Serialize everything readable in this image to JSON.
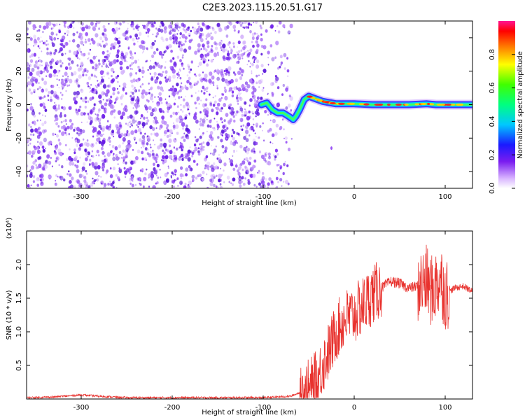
{
  "title": "C2E3.2023.115.20.51.G17",
  "colors": {
    "signal_line": "#e8322e",
    "scatter_purple": "#7a2cf0",
    "background": "#ffffff"
  },
  "chart_data": [
    {
      "type": "heatmap",
      "xlabel": "Height of straight line (km)",
      "ylabel": "Frequency (Hz)",
      "xlim": [
        -360,
        130
      ],
      "ylim": [
        -50,
        50
      ],
      "x_ticks": [
        -300,
        -200,
        -100,
        0,
        100
      ],
      "y_ticks": [
        -40,
        -20,
        0,
        20,
        40
      ],
      "noise_region_x": [
        -360,
        -80
      ],
      "ridge": {
        "x": [
          -102,
          -96,
          -90,
          -84,
          -78,
          -72,
          -67,
          -64,
          -60,
          -55,
          -50,
          -45,
          -40,
          -35,
          -30,
          -25,
          -20,
          -10,
          0,
          20,
          40,
          60,
          80,
          90,
          100,
          115,
          130
        ],
        "y": [
          0,
          1,
          -3,
          -5,
          -5,
          -7,
          -9,
          -7,
          -3,
          3,
          5,
          4,
          3,
          2,
          1.5,
          1,
          0.5,
          0.5,
          0.5,
          0,
          0,
          0,
          0.5,
          0,
          0,
          0,
          0
        ]
      },
      "colorbar": {
        "label": "Normalized spectral amplitude",
        "range": [
          0.0,
          1.0
        ],
        "ticks": [
          0.0,
          0.2,
          0.4,
          0.6,
          0.8
        ]
      },
      "grid": false
    },
    {
      "type": "line",
      "xlabel": "Height of straight line (km)",
      "ylabel": "SNR (10 * v/v)",
      "scale_note": "(x10⁴)",
      "xlim": [
        -360,
        130
      ],
      "ylim": [
        0,
        2.5
      ],
      "x_ticks": [
        -300,
        -200,
        -100,
        0,
        100
      ],
      "y_ticks": [
        0.5,
        1.0,
        1.5,
        2.0
      ],
      "series": [
        {
          "x": [
            -360,
            -330,
            -300,
            -280,
            -250,
            -200,
            -150,
            -100,
            -70,
            -50,
            -40,
            -35,
            -30,
            -25,
            -20,
            -10,
            0,
            10,
            20,
            30,
            40,
            50,
            60,
            70,
            80,
            85,
            90,
            95,
            100,
            110,
            120,
            130
          ],
          "y": [
            0.02,
            0.03,
            0.06,
            0.04,
            0.02,
            0.02,
            0.02,
            0.02,
            0.04,
            0.15,
            0.3,
            0.5,
            0.65,
            0.8,
            1.0,
            1.2,
            1.25,
            1.4,
            1.55,
            1.65,
            1.75,
            1.72,
            1.65,
            1.68,
            1.75,
            1.6,
            1.7,
            1.8,
            1.55,
            1.65,
            1.68,
            1.6
          ]
        }
      ],
      "grid": false
    }
  ]
}
